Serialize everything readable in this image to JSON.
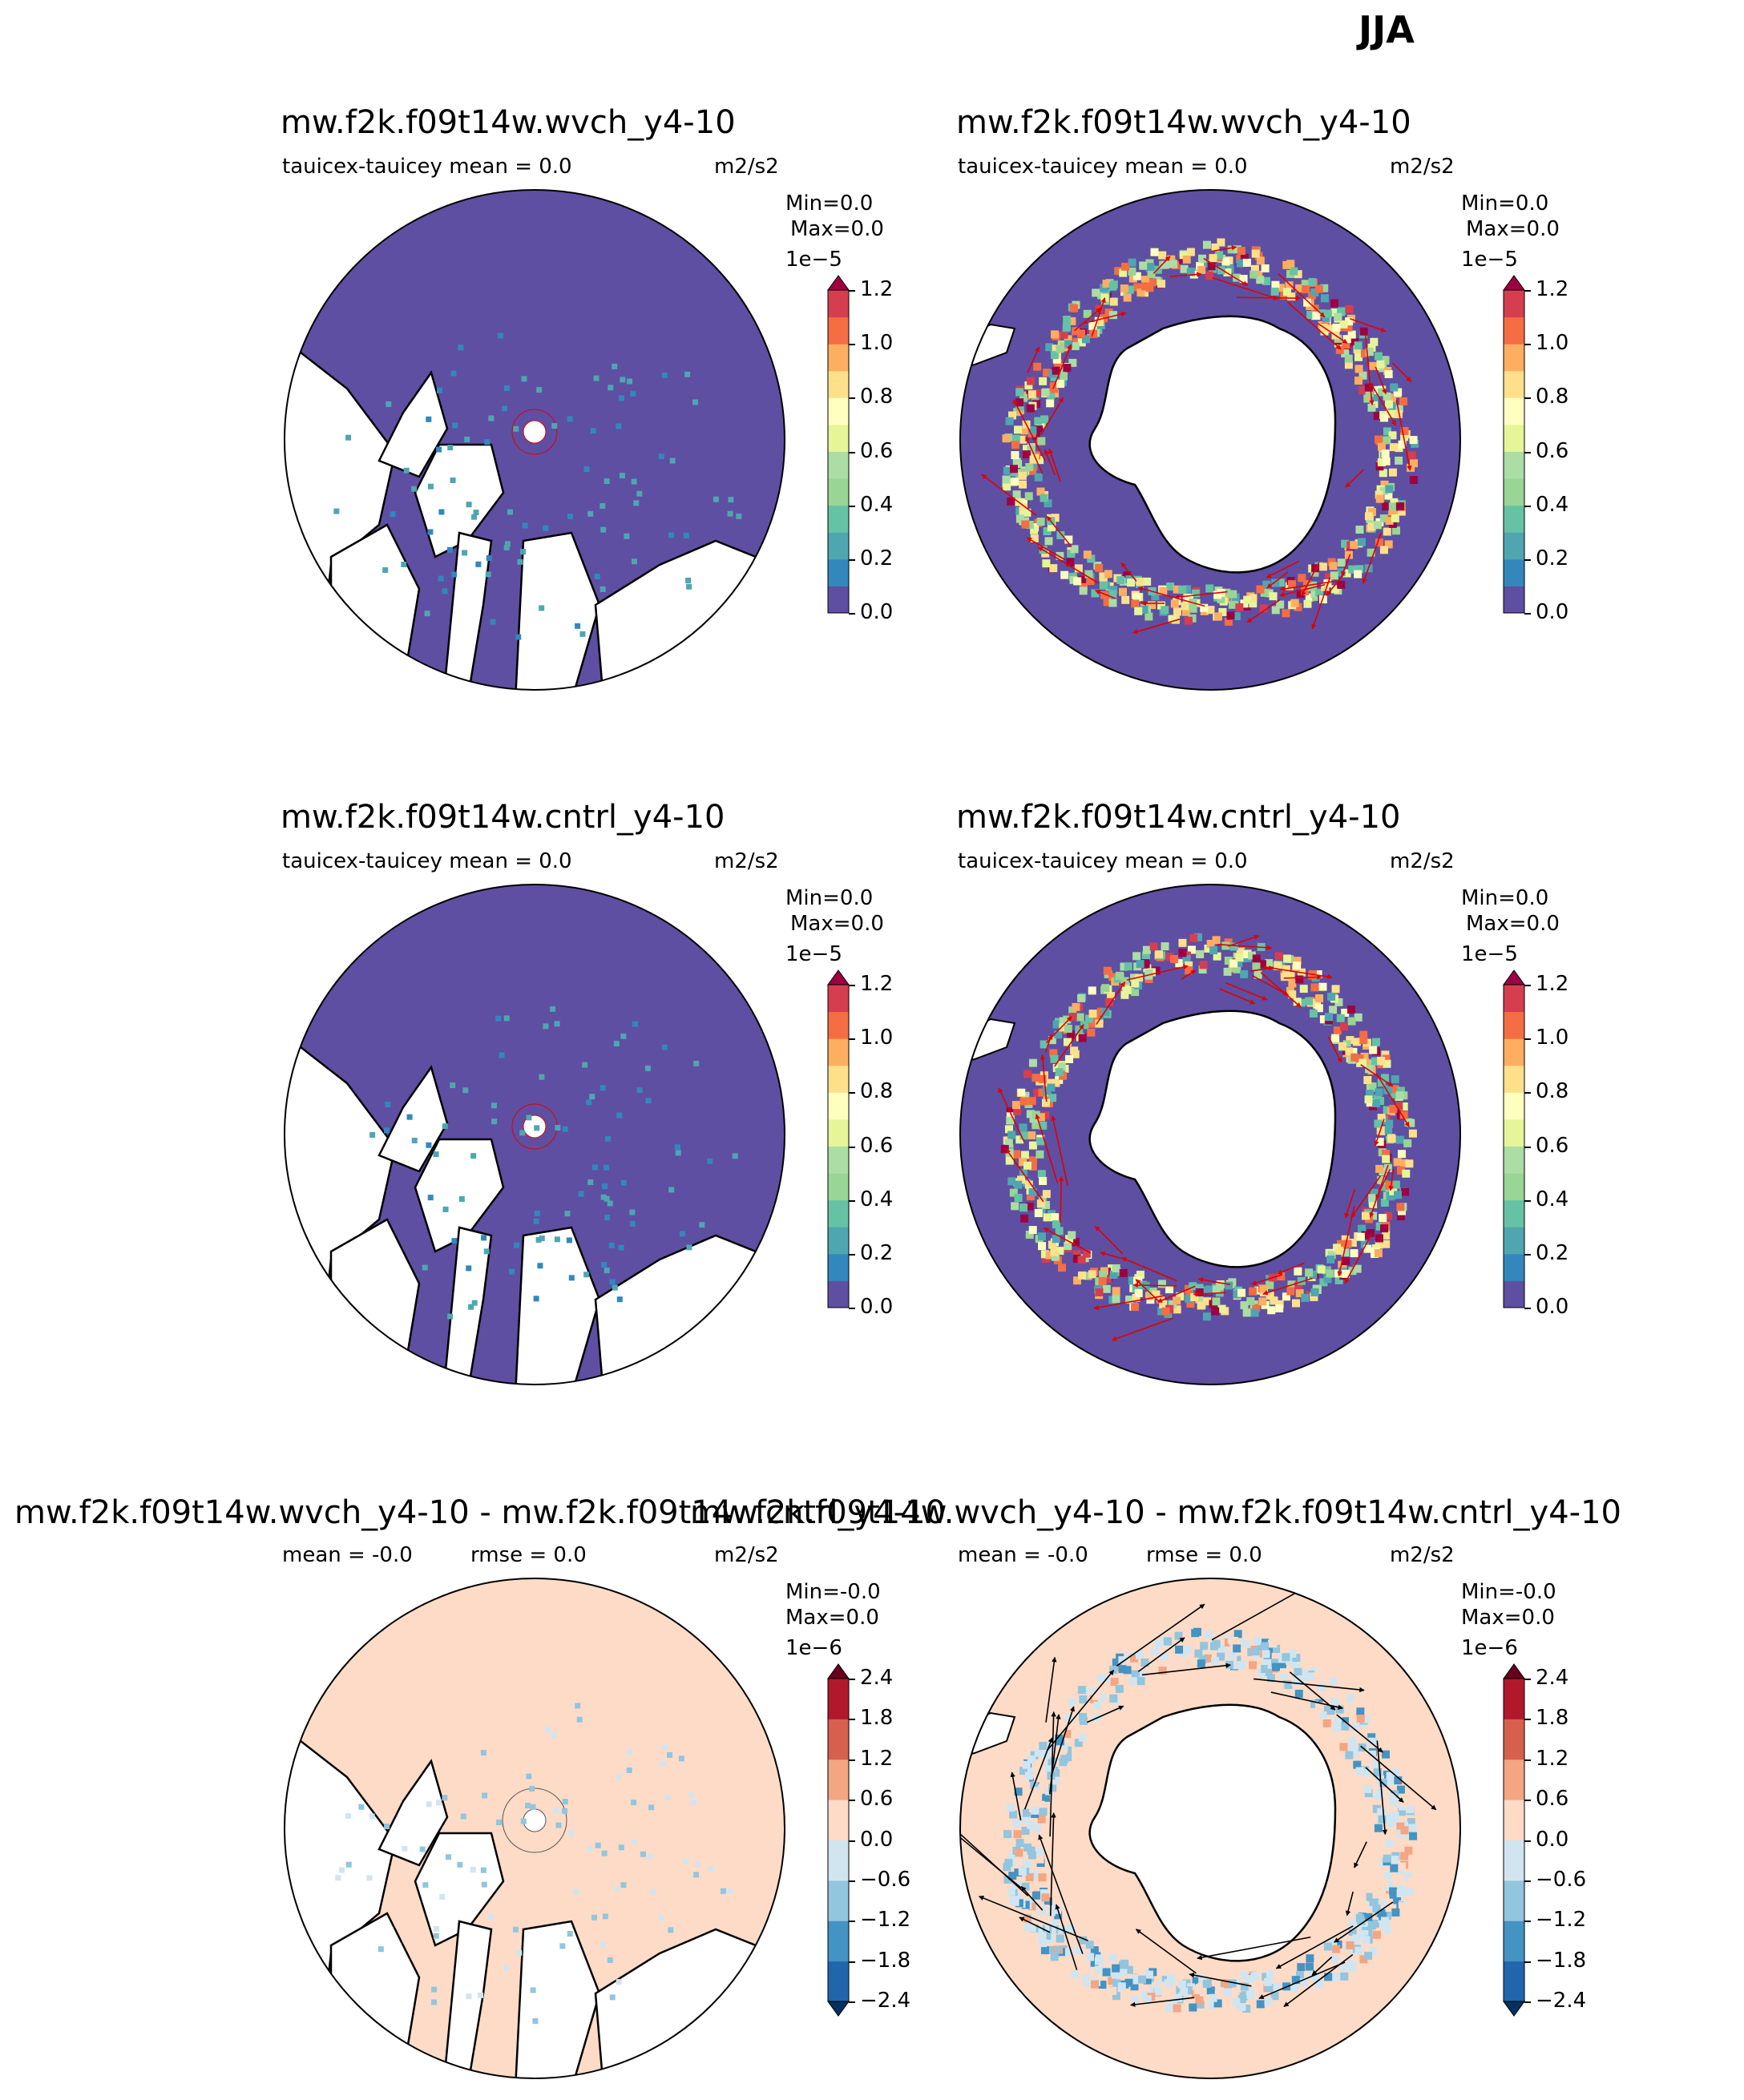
{
  "suptitle": "JJA",
  "panels": [
    {
      "id": "nh-wvch",
      "hemisphere": "north",
      "kind": "abs",
      "title": "mw.f2k.f09t14w.wvch_y4-10",
      "subtitle_left": "tauicex-tauicey  mean = 0.0",
      "subtitle_units": "m2/s2",
      "minmax": [
        "Min=0.0",
        "Max=0.0"
      ],
      "colorbar_exp": "1e−5",
      "colorbar_ticks": [
        "1.2",
        "1.0",
        "0.8",
        "0.6",
        "0.4",
        "0.2",
        "0.0"
      ]
    },
    {
      "id": "sh-wvch",
      "hemisphere": "south",
      "kind": "abs",
      "title": "mw.f2k.f09t14w.wvch_y4-10",
      "subtitle_left": "tauicex-tauicey  mean = 0.0",
      "subtitle_units": "m2/s2",
      "minmax": [
        "Min=0.0",
        "Max=0.0"
      ],
      "colorbar_exp": "1e−5",
      "colorbar_ticks": [
        "1.2",
        "1.0",
        "0.8",
        "0.6",
        "0.4",
        "0.2",
        "0.0"
      ]
    },
    {
      "id": "nh-cntrl",
      "hemisphere": "north",
      "kind": "abs",
      "title": "mw.f2k.f09t14w.cntrl_y4-10",
      "subtitle_left": "tauicex-tauicey  mean = 0.0",
      "subtitle_units": "m2/s2",
      "minmax": [
        "Min=0.0",
        "Max=0.0"
      ],
      "colorbar_exp": "1e−5",
      "colorbar_ticks": [
        "1.2",
        "1.0",
        "0.8",
        "0.6",
        "0.4",
        "0.2",
        "0.0"
      ]
    },
    {
      "id": "sh-cntrl",
      "hemisphere": "south",
      "kind": "abs",
      "title": "mw.f2k.f09t14w.cntrl_y4-10",
      "subtitle_left": "tauicex-tauicey  mean = 0.0",
      "subtitle_units": "m2/s2",
      "minmax": [
        "Min=0.0",
        "Max=0.0"
      ],
      "colorbar_exp": "1e−5",
      "colorbar_ticks": [
        "1.2",
        "1.0",
        "0.8",
        "0.6",
        "0.4",
        "0.2",
        "0.0"
      ]
    },
    {
      "id": "nh-diff",
      "hemisphere": "north",
      "kind": "diff",
      "title": "mw.f2k.f09t14w.wvch_y4-10 - mw.f2k.f09t14w.cntrl_y4-10",
      "subtitle_left": "mean = -0.0",
      "subtitle_mid": "rmse = 0.0",
      "subtitle_units": "m2/s2",
      "minmax": [
        "Min=-0.0",
        "Max=0.0"
      ],
      "colorbar_exp": "1e−6",
      "colorbar_ticks": [
        "2.4",
        "1.8",
        "1.2",
        "0.6",
        "0.0",
        "−0.6",
        "−1.2",
        "−1.8",
        "−2.4"
      ]
    },
    {
      "id": "sh-diff",
      "hemisphere": "south",
      "kind": "diff",
      "title": "mw.f2k.f09t14w.wvch_y4-10 - mw.f2k.f09t14w.cntrl_y4-10",
      "subtitle_left": "mean = -0.0",
      "subtitle_mid": "rmse = 0.0",
      "subtitle_units": "m2/s2",
      "minmax": [
        "Min=-0.0",
        "Max=0.0"
      ],
      "colorbar_exp": "1e−6",
      "colorbar_ticks": [
        "2.4",
        "1.8",
        "1.2",
        "0.6",
        "0.0",
        "−0.6",
        "−1.2",
        "−1.8",
        "−2.4"
      ]
    }
  ],
  "chart_data": {
    "type": "heatmap",
    "title": "JJA",
    "variable": "tauicex-tauicey",
    "units": "m2/s2",
    "projection": "polar stereographic (north and south)",
    "colormaps": {
      "abs": {
        "levels": [
          0.0,
          0.1,
          0.2,
          0.3,
          0.4,
          0.5,
          0.6,
          0.7,
          0.8,
          0.9,
          1.0,
          1.1,
          1.2
        ],
        "scale": "1e-5",
        "extend": "max",
        "colors": [
          "#5e4fa2",
          "#3288bd",
          "#4fa6b1",
          "#66c2a5",
          "#99d594",
          "#abdda4",
          "#e6f598",
          "#ffffbf",
          "#fee08b",
          "#fdae61",
          "#f46d43",
          "#d53e4f"
        ],
        "over": "#9e0142"
      },
      "diff": {
        "levels": [
          -2.4,
          -1.8,
          -1.2,
          -0.6,
          0.0,
          0.6,
          1.2,
          1.8,
          2.4
        ],
        "scale": "1e-6",
        "extend": "both",
        "colors": [
          "#2166ac",
          "#4393c3",
          "#92c5de",
          "#d1e5f0",
          "#fddbc7",
          "#f4a582",
          "#d6604d",
          "#b2182b"
        ],
        "under": "#053061",
        "over": "#67001f"
      }
    },
    "panel_stats": [
      {
        "panel": "mw.f2k.f09t14w.wvch_y4-10",
        "hemisphere": "north",
        "mean": 0.0,
        "min": 0.0,
        "max": 0.0
      },
      {
        "panel": "mw.f2k.f09t14w.wvch_y4-10",
        "hemisphere": "south",
        "mean": 0.0,
        "min": 0.0,
        "max": 0.0
      },
      {
        "panel": "mw.f2k.f09t14w.cntrl_y4-10",
        "hemisphere": "north",
        "mean": 0.0,
        "min": 0.0,
        "max": 0.0
      },
      {
        "panel": "mw.f2k.f09t14w.cntrl_y4-10",
        "hemisphere": "south",
        "mean": 0.0,
        "min": 0.0,
        "max": 0.0
      },
      {
        "panel": "mw.f2k.f09t14w.wvch_y4-10 - mw.f2k.f09t14w.cntrl_y4-10",
        "hemisphere": "north",
        "mean": -0.0,
        "rmse": 0.0,
        "min": -0.0,
        "max": 0.0
      },
      {
        "panel": "mw.f2k.f09t14w.wvch_y4-10 - mw.f2k.f09t14w.cntrl_y4-10",
        "hemisphere": "south",
        "mean": -0.0,
        "rmse": 0.0,
        "min": -0.0,
        "max": 0.0
      }
    ]
  }
}
